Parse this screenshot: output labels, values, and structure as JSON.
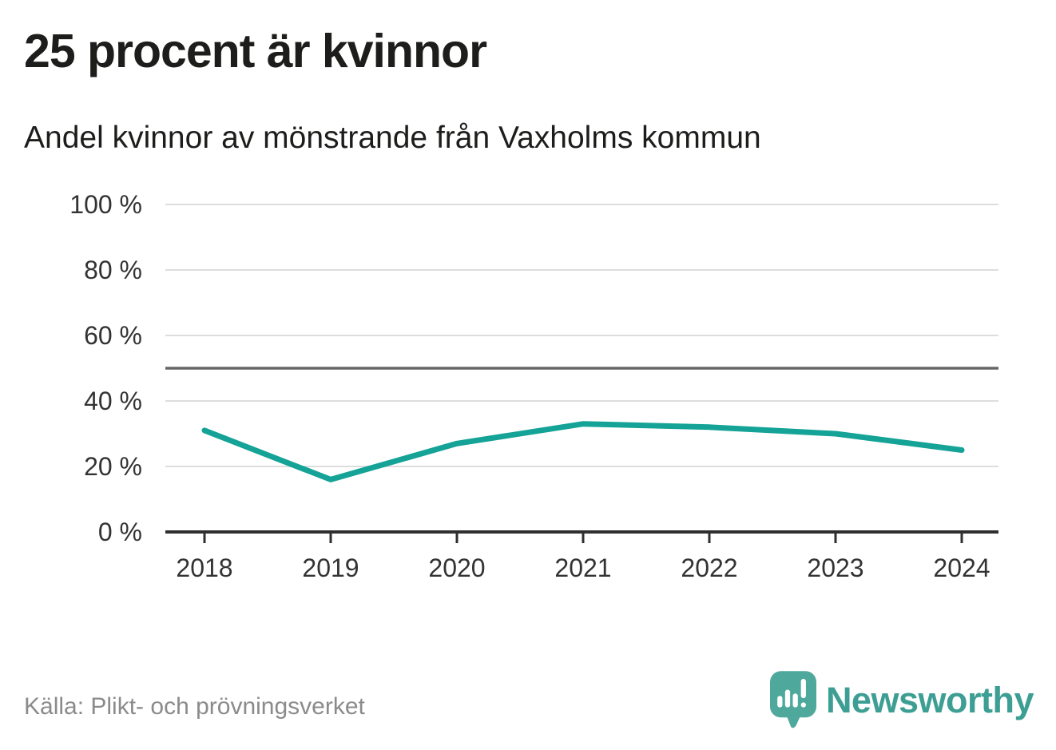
{
  "chart_data": {
    "type": "line",
    "title": "25 procent är kvinnor",
    "subtitle": "Andel kvinnor av mönstrande från Vaxholms kommun",
    "x": [
      2018,
      2019,
      2020,
      2021,
      2022,
      2023,
      2024
    ],
    "x_tick_labels": [
      "2018",
      "2019",
      "2020",
      "2021",
      "2022",
      "2023",
      "2024"
    ],
    "series": [
      {
        "name": "Andel kvinnor av mönstrande",
        "values": [
          31,
          16,
          27,
          33,
          32,
          30,
          25
        ]
      }
    ],
    "unit": "%",
    "ylim": [
      0,
      100
    ],
    "yticks": [
      0,
      20,
      40,
      60,
      80,
      100
    ],
    "y_tick_labels": [
      "0 %",
      "20 %",
      "40 %",
      "60 %",
      "80 %",
      "100 %"
    ],
    "grid": true,
    "legend": "none",
    "reference_line": {
      "value": 50,
      "color": "#666666"
    },
    "colors": {
      "line": "#14a396",
      "axis": "#2f2f2f",
      "grid": "#dddddd",
      "tick_text": "#333333"
    }
  },
  "footer": {
    "source": "Källa: Plikt- och prövningsverket",
    "brand": "Newsworthy"
  },
  "branding": {
    "bubble_color": "#4fa89c",
    "wordmark_color": "#3d9e93"
  }
}
